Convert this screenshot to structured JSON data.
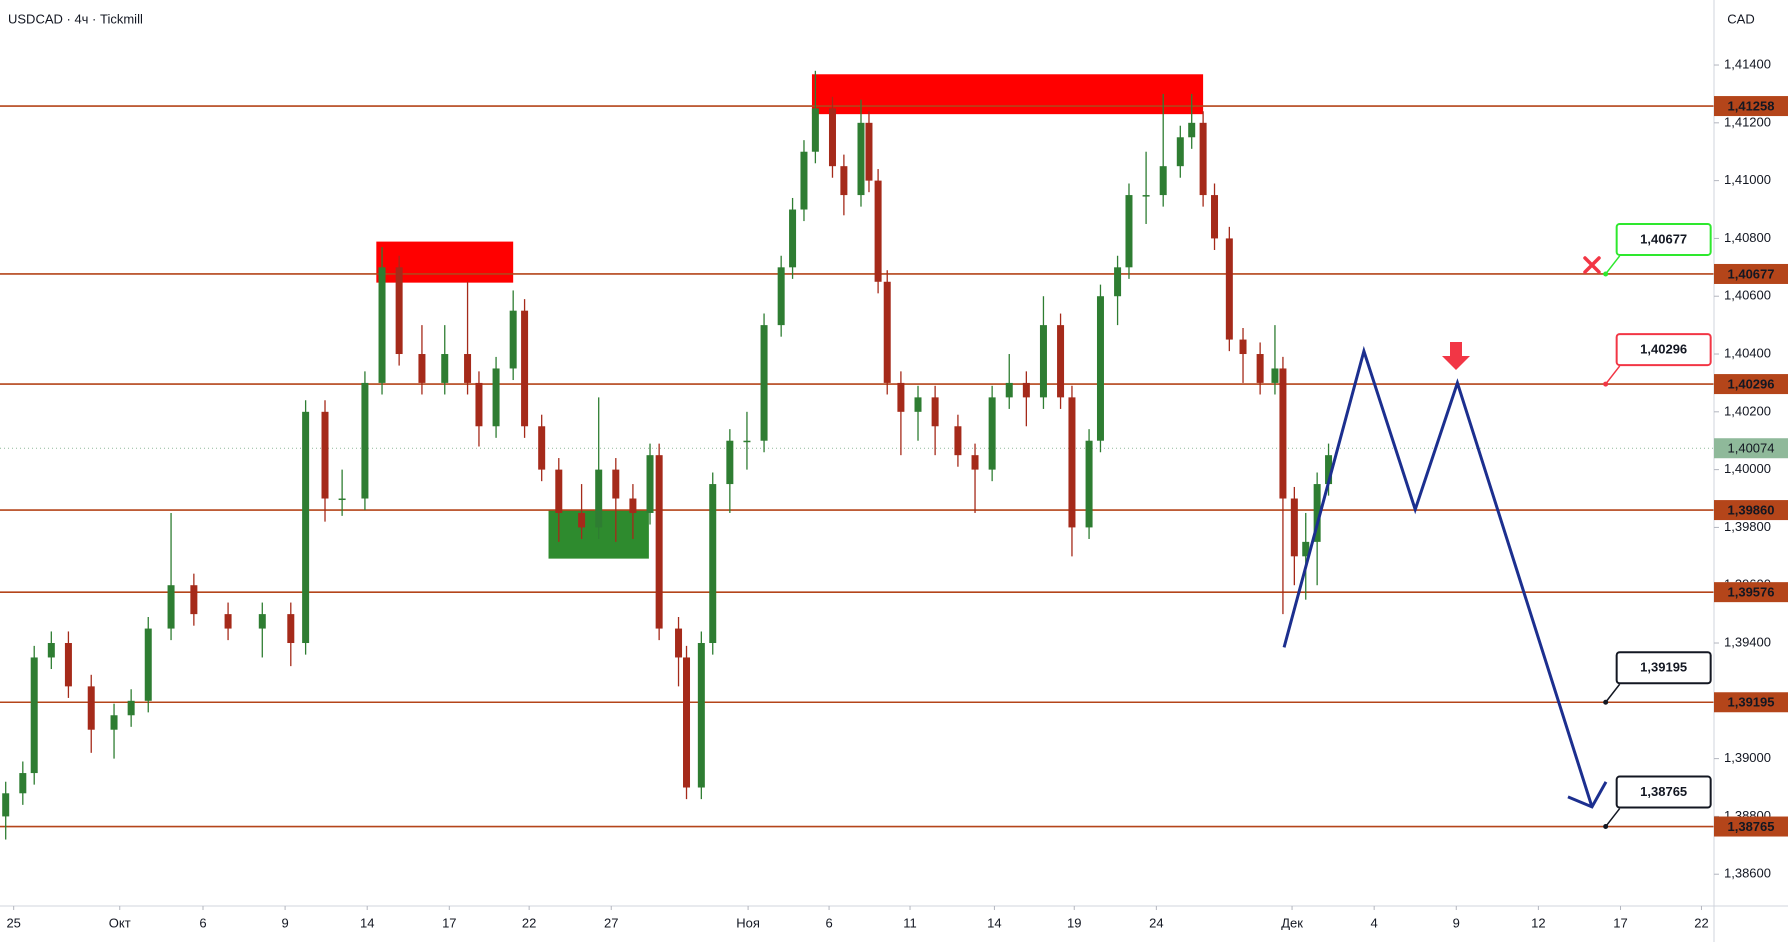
{
  "chart_data": {
    "type": "candlestick",
    "title": "USDCAD · 4ч · Tickmill",
    "y_axis_label": "CAD",
    "ylim": [
      1.3849,
      1.41625
    ],
    "yticks": [
      {
        "value": 1.414,
        "label": "1,41400"
      },
      {
        "value": 1.412,
        "label": "1,41200"
      },
      {
        "value": 1.41,
        "label": "1,41000"
      },
      {
        "value": 1.408,
        "label": "1,40800"
      },
      {
        "value": 1.406,
        "label": "1,40600"
      },
      {
        "value": 1.404,
        "label": "1,40400"
      },
      {
        "value": 1.402,
        "label": "1,40200"
      },
      {
        "value": 1.4,
        "label": "1,40000"
      },
      {
        "value": 1.398,
        "label": "1,39800"
      },
      {
        "value": 1.396,
        "label": "1,39600"
      },
      {
        "value": 1.394,
        "label": "1,39400"
      },
      {
        "value": 1.392,
        "label": "1,39200"
      },
      {
        "value": 1.39,
        "label": "1,39000"
      },
      {
        "value": 1.388,
        "label": "1,38800"
      },
      {
        "value": 1.386,
        "label": "1,38600"
      }
    ],
    "xlim": [
      0,
      375.75
    ],
    "xticks": [
      {
        "value": 3,
        "label": "25"
      },
      {
        "value": 26.25,
        "label": "Окт"
      },
      {
        "value": 44.5,
        "label": "6"
      },
      {
        "value": 62.5,
        "label": "9"
      },
      {
        "value": 80.5,
        "label": "14"
      },
      {
        "value": 98.5,
        "label": "17"
      },
      {
        "value": 116,
        "label": "22"
      },
      {
        "value": 134,
        "label": "27"
      },
      {
        "value": 164,
        "label": "Ноя"
      },
      {
        "value": 181.75,
        "label": "6"
      },
      {
        "value": 199.5,
        "label": "11"
      },
      {
        "value": 218,
        "label": "14"
      },
      {
        "value": 235.5,
        "label": "19"
      },
      {
        "value": 253.5,
        "label": "24"
      },
      {
        "value": 283.25,
        "label": "Дек"
      },
      {
        "value": 301.25,
        "label": "4"
      },
      {
        "value": 319.25,
        "label": "9"
      },
      {
        "value": 337.25,
        "label": "12"
      },
      {
        "value": 355.25,
        "label": "17"
      },
      {
        "value": 373,
        "label": "22"
      }
    ],
    "up_color": "#2e7d32",
    "down_color": "#a52a1a",
    "candles": {
      "x": [
        1.25,
        5,
        7.5,
        11.25,
        15,
        20,
        25,
        28.75,
        32.5,
        37.5,
        42.5,
        50,
        57.5,
        63.75,
        67,
        71.25,
        75,
        80,
        83.75,
        87.5,
        92.5,
        97.5,
        102.5,
        105,
        108.75,
        112.5,
        115,
        118.75,
        122.5,
        127.5,
        131.25,
        135,
        138.75,
        142.5,
        144.5,
        148.75,
        150.5,
        153.75,
        156.25,
        160,
        163.75,
        167.5,
        171.25,
        173.75,
        176.25,
        178.75,
        182.5,
        185,
        188.75,
        190.5,
        192.5,
        194.5,
        197.5,
        201.25,
        205,
        210,
        213.75,
        217.5,
        221.25,
        225,
        228.75,
        232.5,
        235,
        238.75,
        241.25,
        245,
        247.5,
        251.25,
        255,
        258.75,
        261.25,
        263.75,
        266.25,
        269.5,
        272.5,
        276.25,
        279.5,
        281.25,
        283.75,
        286.25,
        288.75,
        291.25
      ],
      "open": [
        1.388,
        1.3888,
        1.3895,
        1.3935,
        1.394,
        1.3925,
        1.391,
        1.3915,
        1.392,
        1.3945,
        1.396,
        1.395,
        1.3945,
        1.395,
        1.394,
        1.402,
        1.399,
        1.399,
        1.403,
        1.407,
        1.404,
        1.403,
        1.404,
        1.403,
        1.4015,
        1.4035,
        1.4055,
        1.4015,
        1.4,
        1.3985,
        1.398,
        1.4,
        1.399,
        1.3985,
        1.4005,
        1.3945,
        1.3935,
        1.389,
        1.394,
        1.3995,
        1.401,
        1.401,
        1.405,
        1.407,
        1.409,
        1.411,
        1.4125,
        1.4105,
        1.4095,
        1.412,
        1.41,
        1.4065,
        1.403,
        1.402,
        1.4025,
        1.4015,
        1.4005,
        1.4,
        1.4025,
        1.403,
        1.4025,
        1.405,
        1.4025,
        1.398,
        1.401,
        1.406,
        1.407,
        1.4095,
        1.4095,
        1.4105,
        1.4115,
        1.412,
        1.4095,
        1.408,
        1.4045,
        1.404,
        1.403,
        1.4035,
        1.399,
        1.397,
        1.3975,
        1.3995
      ],
      "high": [
        1.3892,
        1.3899,
        1.3939,
        1.3944,
        1.3944,
        1.3929,
        1.3919,
        1.3924,
        1.3949,
        1.3985,
        1.3964,
        1.3954,
        1.3954,
        1.3954,
        1.4024,
        1.4024,
        1.4,
        1.4034,
        1.4077,
        1.4074,
        1.405,
        1.405,
        1.4065,
        1.4034,
        1.4039,
        1.4062,
        1.4059,
        1.4019,
        1.4004,
        1.3995,
        1.4025,
        1.4004,
        1.3995,
        1.4009,
        1.4009,
        1.3949,
        1.3939,
        1.3944,
        1.3999,
        1.4014,
        1.402,
        1.4054,
        1.4074,
        1.4094,
        1.4114,
        1.4138,
        1.4129,
        1.4109,
        1.4128,
        1.4124,
        1.4104,
        1.4069,
        1.4034,
        1.4029,
        1.4029,
        1.4019,
        1.4009,
        1.4029,
        1.404,
        1.4034,
        1.406,
        1.4054,
        1.4029,
        1.4014,
        1.4064,
        1.4074,
        1.4099,
        1.411,
        1.413,
        1.4119,
        1.413,
        1.4124,
        1.4099,
        1.4084,
        1.4049,
        1.4044,
        1.405,
        1.4039,
        1.3994,
        1.3985,
        1.3999,
        1.4009
      ],
      "low": [
        1.3872,
        1.3884,
        1.3891,
        1.3931,
        1.3921,
        1.3902,
        1.39,
        1.3911,
        1.3916,
        1.3941,
        1.3946,
        1.3941,
        1.3935,
        1.3932,
        1.3936,
        1.3982,
        1.3984,
        1.3986,
        1.4026,
        1.4036,
        1.4026,
        1.4026,
        1.4026,
        1.4008,
        1.4011,
        1.4031,
        1.4011,
        1.3996,
        1.3975,
        1.3976,
        1.3976,
        1.3975,
        1.3976,
        1.3981,
        1.3941,
        1.3925,
        1.3886,
        1.3886,
        1.3936,
        1.3985,
        1.4,
        1.4006,
        1.4046,
        1.4066,
        1.4086,
        1.4106,
        1.4101,
        1.4088,
        1.4091,
        1.4096,
        1.4061,
        1.4026,
        1.4005,
        1.401,
        1.4005,
        1.4001,
        1.3985,
        1.3996,
        1.4021,
        1.4015,
        1.4021,
        1.4021,
        1.397,
        1.3976,
        1.4006,
        1.405,
        1.4066,
        1.4085,
        1.4091,
        1.4101,
        1.4111,
        1.4091,
        1.4076,
        1.4041,
        1.403,
        1.4026,
        1.4026,
        1.395,
        1.396,
        1.3955,
        1.396,
        1.3991
      ],
      "close": [
        1.3888,
        1.3895,
        1.3935,
        1.394,
        1.3925,
        1.391,
        1.3915,
        1.392,
        1.3945,
        1.396,
        1.395,
        1.3945,
        1.395,
        1.394,
        1.402,
        1.399,
        1.399,
        1.403,
        1.407,
        1.404,
        1.403,
        1.404,
        1.403,
        1.4015,
        1.4035,
        1.4055,
        1.4015,
        1.4,
        1.3985,
        1.398,
        1.4,
        1.399,
        1.3985,
        1.4005,
        1.3945,
        1.3935,
        1.389,
        1.394,
        1.3995,
        1.401,
        1.401,
        1.405,
        1.407,
        1.409,
        1.411,
        1.4125,
        1.4105,
        1.4095,
        1.412,
        1.41,
        1.4065,
        1.403,
        1.402,
        1.4025,
        1.4015,
        1.4005,
        1.4,
        1.4025,
        1.403,
        1.4025,
        1.405,
        1.4025,
        1.398,
        1.401,
        1.406,
        1.407,
        1.4095,
        1.4095,
        1.4105,
        1.4115,
        1.412,
        1.4095,
        1.408,
        1.4045,
        1.404,
        1.403,
        1.4035,
        1.399,
        1.397,
        1.3975,
        1.3995,
        1.4005
      ]
    },
    "levels": [
      {
        "value": 1.41258,
        "label": "1,41258"
      },
      {
        "value": 1.40677,
        "label": "1,40677"
      },
      {
        "value": 1.40296,
        "label": "1,40296"
      },
      {
        "value": 1.3986,
        "label": "1,39860"
      },
      {
        "value": 1.39576,
        "label": "1,39576"
      },
      {
        "value": 1.39195,
        "label": "1,39195"
      },
      {
        "value": 1.38765,
        "label": "1,38765"
      }
    ],
    "level_color": "#b4451a",
    "current_price": {
      "value": 1.40074,
      "label": "1,40074",
      "color": "#8fb99a"
    },
    "zones": [
      {
        "x": [
          82.5,
          112.5
        ],
        "y": [
          1.40789,
          1.40647
        ],
        "color": "#ff0000"
      },
      {
        "x": [
          178,
          263.75
        ],
        "y": [
          1.41368,
          1.4123
        ],
        "color": "#ff0000"
      },
      {
        "x": [
          120.25,
          142.25
        ],
        "y": [
          1.39862,
          1.39692
        ],
        "color": "#2e8b2e"
      }
    ],
    "projection": {
      "x": [
        281.5,
        299,
        310.25,
        319.5,
        349
      ],
      "values": [
        1.39385,
        1.4041,
        1.39862,
        1.403,
        1.38833
      ],
      "color": "#1c2f8f"
    },
    "annotations": [
      {
        "label": "1,40677",
        "value": 1.40677,
        "x": 352,
        "color": "#2ee82e"
      },
      {
        "label": "1,40296",
        "value": 1.40296,
        "x": 352,
        "color": "#f23645"
      },
      {
        "label": "1,39195",
        "value": 1.39195,
        "x": 352,
        "color": "#131722"
      },
      {
        "label": "1,38765",
        "value": 1.38765,
        "x": 352,
        "color": "#131722"
      }
    ]
  }
}
